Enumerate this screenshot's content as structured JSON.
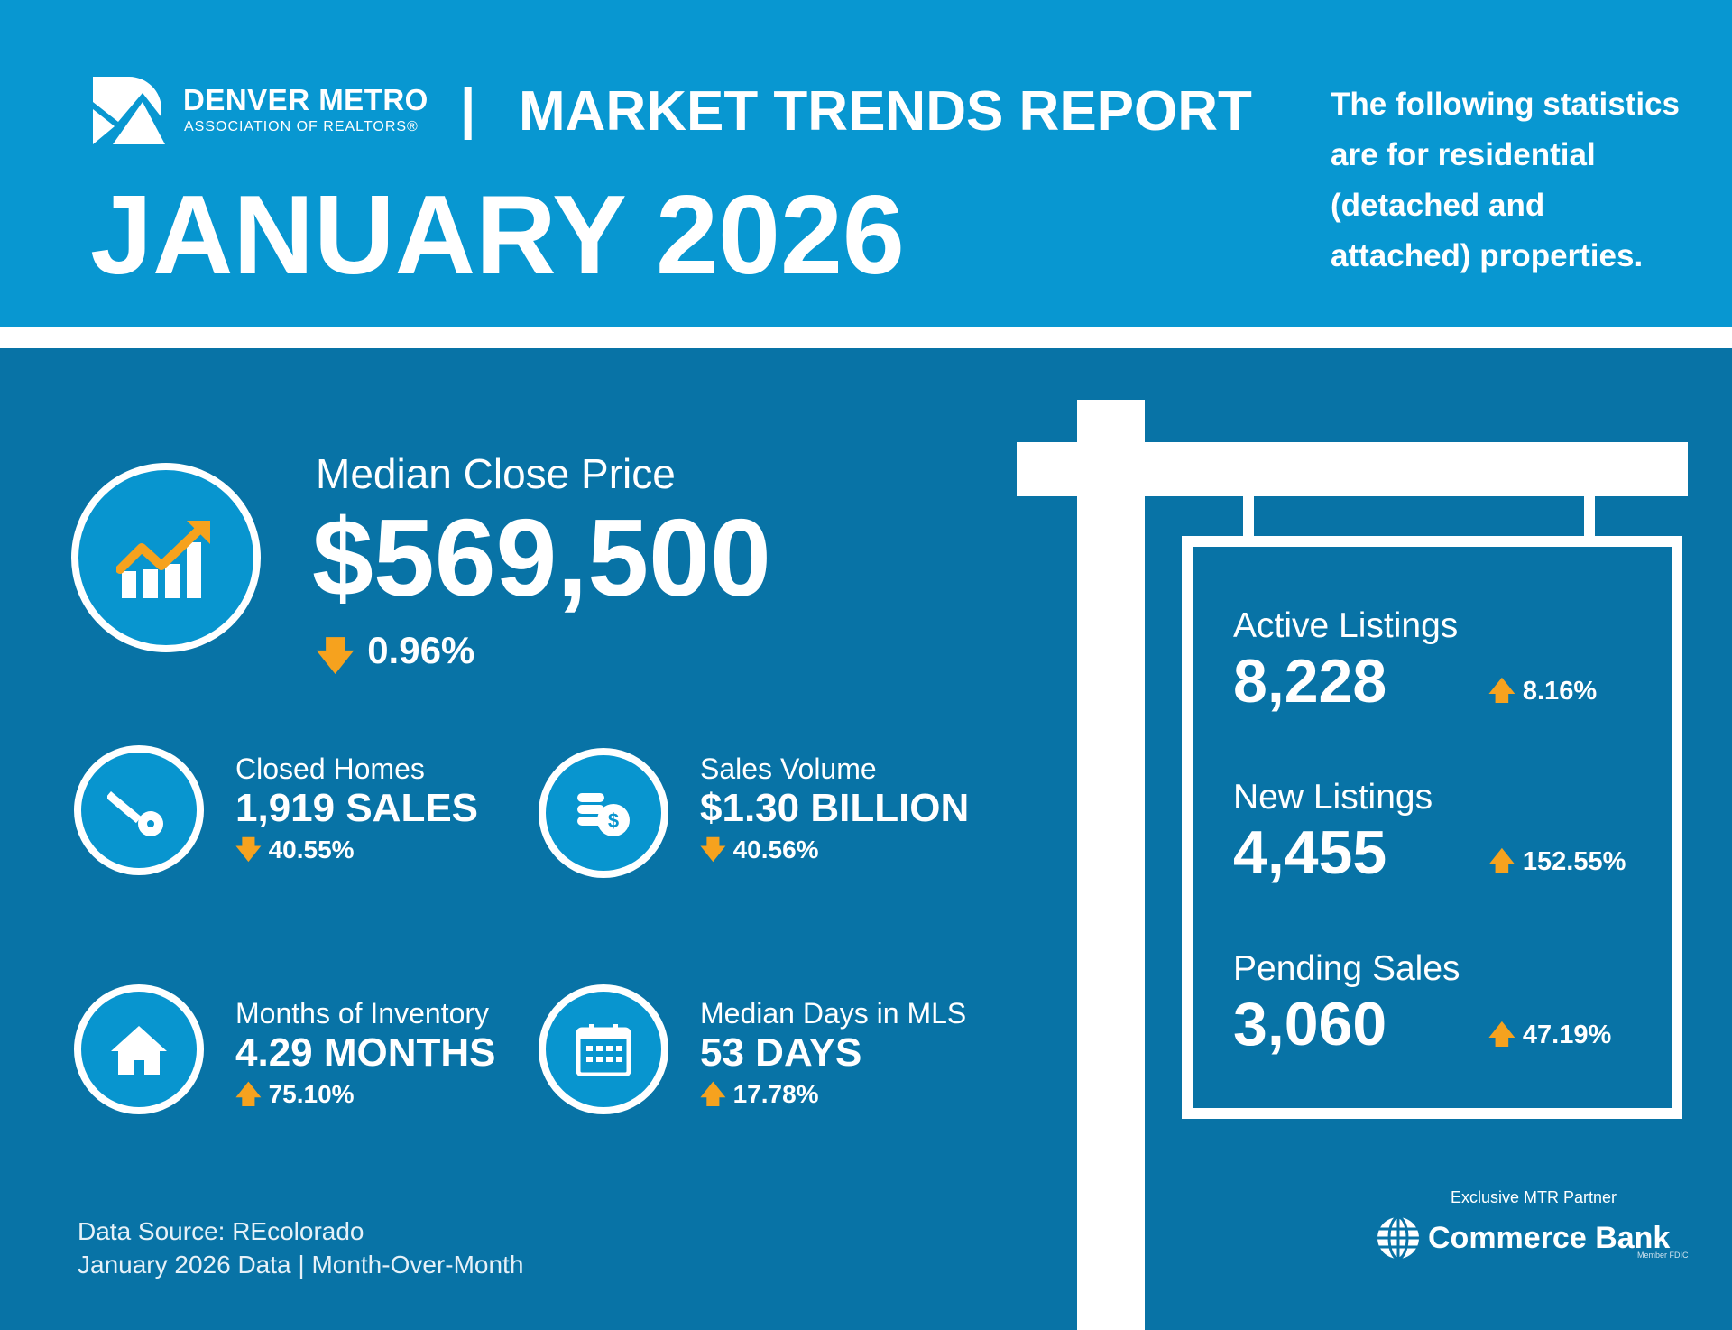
{
  "header": {
    "logo": {
      "line1": "DENVER METRO",
      "line2": "ASSOCIATION OF REALTORS®"
    },
    "separator": "|",
    "report_title": "MARKET TRENDS REPORT",
    "period": "JANUARY 2026",
    "note_lines": [
      "The following statistics",
      "are for residential",
      "(detached and",
      "attached) properties."
    ]
  },
  "median_close_price": {
    "label": "Median Close Price",
    "value": "$569,500",
    "direction": "down",
    "change": "0.96%",
    "icon": "rising-chart-icon"
  },
  "stats": [
    {
      "label": "Closed Homes",
      "value": "1,919 SALES",
      "direction": "down",
      "change": "40.55%",
      "icon": "key-icon"
    },
    {
      "label": "Sales Volume",
      "value": "$1.30 BILLION",
      "direction": "down",
      "change": "40.56%",
      "icon": "coins-dollar-icon"
    },
    {
      "label": "Months of Inventory",
      "value": "4.29 MONTHS",
      "direction": "up",
      "change": "75.10%",
      "icon": "house-icon"
    },
    {
      "label": "Median Days in MLS",
      "value": "53 DAYS",
      "direction": "up",
      "change": "17.78%",
      "icon": "calendar-icon"
    }
  ],
  "sign": [
    {
      "label": "Active Listings",
      "value": "8,228",
      "direction": "up",
      "change": "8.16%"
    },
    {
      "label": "New Listings",
      "value": "4,455",
      "direction": "up",
      "change": "152.55%"
    },
    {
      "label": "Pending Sales",
      "value": "3,060",
      "direction": "up",
      "change": "47.19%"
    }
  ],
  "footer": {
    "source": "Data Source: REcolorado",
    "period_note": "January 2026 Data | Month-Over-Month"
  },
  "partner": {
    "label": "Exclusive MTR Partner",
    "name": "Commerce Bank",
    "member": "Member FDIC"
  },
  "colors": {
    "header": "#0897d1",
    "main": "#0873a6",
    "accent": "#f6a21e",
    "circle": "#0895cf"
  }
}
